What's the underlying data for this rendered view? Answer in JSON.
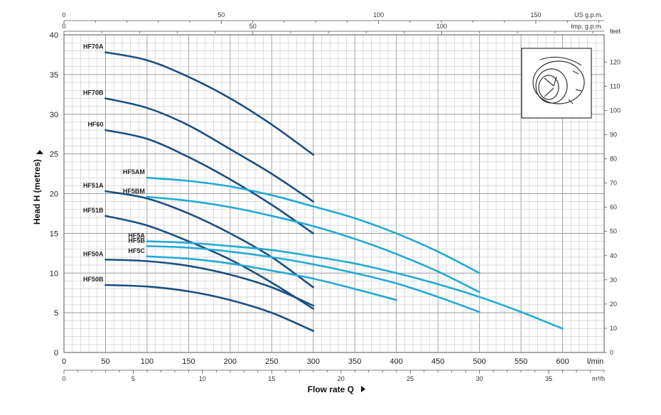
{
  "chart_data": {
    "type": "line",
    "x_label": "Flow rate Q",
    "x_unit": "l/min",
    "y_label": "Head H (metres)",
    "y_right_unit": "feet",
    "xlim": [
      0,
      650
    ],
    "ylim": [
      0,
      40
    ],
    "x_ticks": [
      0,
      50,
      100,
      150,
      200,
      250,
      300,
      350,
      400,
      450,
      500,
      550,
      600
    ],
    "y_ticks": [
      0,
      5,
      10,
      15,
      20,
      25,
      30,
      35,
      40
    ],
    "top_axes": [
      {
        "unit": "US g.p.m.",
        "ticks": [
          0,
          50,
          100,
          150
        ]
      },
      {
        "unit": "Imp. g.p.m.",
        "ticks": [
          0,
          50,
          100
        ]
      }
    ],
    "bottom_axis": {
      "unit": "m³/h",
      "ticks": [
        0,
        5,
        10,
        15,
        20,
        25,
        30,
        35
      ]
    },
    "right_axis": {
      "unit": "feet",
      "ticks": [
        0,
        10,
        20,
        30,
        40,
        50,
        60,
        70,
        80,
        90,
        100,
        110,
        120
      ]
    },
    "grid": true,
    "series": [
      {
        "name": "HF70A",
        "color": "#1b4f82",
        "x": [
          50,
          100,
          150,
          200,
          250,
          300
        ],
        "y": [
          37.8,
          36.8,
          34.7,
          32.0,
          28.7,
          24.9
        ]
      },
      {
        "name": "HF70B",
        "color": "#1b4f82",
        "x": [
          50,
          100,
          150,
          200,
          250,
          300
        ],
        "y": [
          32.0,
          30.8,
          28.6,
          25.6,
          22.5,
          19.0
        ]
      },
      {
        "name": "HF60",
        "color": "#1b4f82",
        "x": [
          50,
          100,
          150,
          200,
          250,
          300
        ],
        "y": [
          28.0,
          26.9,
          24.6,
          21.8,
          18.6,
          15.0
        ]
      },
      {
        "name": "HF51A",
        "color": "#1b4f82",
        "x": [
          50,
          100,
          150,
          200,
          250,
          300
        ],
        "y": [
          20.3,
          19.4,
          17.5,
          15.0,
          12.0,
          8.2
        ]
      },
      {
        "name": "HF51B",
        "color": "#1b4f82",
        "x": [
          50,
          100,
          150,
          200,
          250,
          300
        ],
        "y": [
          17.2,
          16.0,
          14.0,
          11.7,
          8.8,
          5.5
        ]
      },
      {
        "name": "HF50A",
        "color": "#1b4f82",
        "x": [
          50,
          100,
          150,
          200,
          250,
          300
        ],
        "y": [
          11.7,
          11.5,
          10.9,
          9.8,
          8.2,
          5.9
        ]
      },
      {
        "name": "HF50B",
        "color": "#1b4f82",
        "x": [
          50,
          100,
          150,
          200,
          250,
          300
        ],
        "y": [
          8.5,
          8.3,
          7.7,
          6.6,
          5.0,
          2.7
        ]
      },
      {
        "name": "HF5AM",
        "color": "#22aad6",
        "x": [
          100,
          150,
          200,
          250,
          300,
          350,
          400,
          450,
          500
        ],
        "y": [
          22.0,
          21.6,
          20.9,
          19.8,
          18.4,
          16.9,
          15.0,
          12.7,
          10.0
        ]
      },
      {
        "name": "HF5BM",
        "color": "#22aad6",
        "x": [
          100,
          150,
          200,
          250,
          300,
          350,
          400,
          450,
          500
        ],
        "y": [
          19.6,
          19.1,
          18.3,
          17.2,
          15.9,
          14.3,
          12.4,
          10.2,
          7.6
        ]
      },
      {
        "name": "HF5A",
        "color": "#22aad6",
        "x": [
          100,
          150,
          200,
          250,
          300,
          350,
          400,
          450,
          500,
          550,
          600
        ],
        "y": [
          14.0,
          13.8,
          13.4,
          12.9,
          12.1,
          11.2,
          10.0,
          8.6,
          7.0,
          5.1,
          3.0
        ]
      },
      {
        "name": "HF5B",
        "color": "#22aad6",
        "x": [
          100,
          150,
          200,
          250,
          300,
          350,
          400,
          450,
          500
        ],
        "y": [
          13.4,
          13.2,
          12.7,
          12.0,
          11.1,
          10.0,
          8.7,
          7.0,
          5.1
        ]
      },
      {
        "name": "HF5C",
        "color": "#22aad6",
        "x": [
          100,
          150,
          200,
          250,
          300,
          350,
          400
        ],
        "y": [
          12.1,
          11.8,
          11.2,
          10.3,
          9.3,
          8.0,
          6.6
        ]
      }
    ]
  }
}
